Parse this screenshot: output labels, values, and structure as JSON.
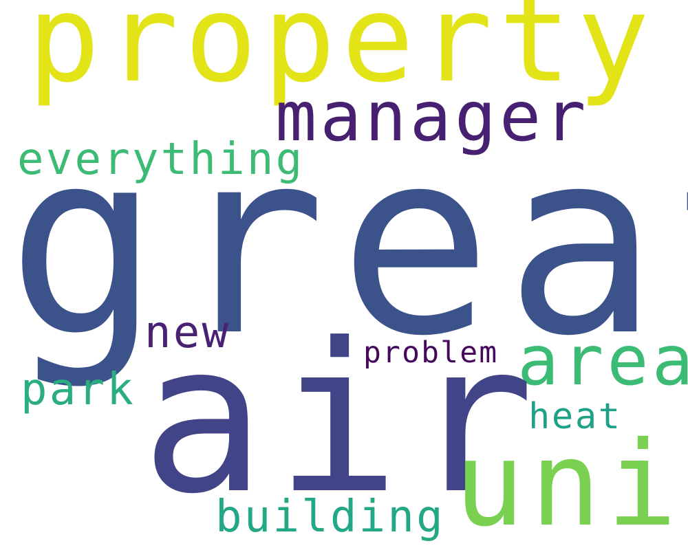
{
  "cloud": {
    "words": [
      {
        "id": "property",
        "text": "property",
        "color": "#e2e418"
      },
      {
        "id": "manager",
        "text": "manager",
        "color": "#482071"
      },
      {
        "id": "everything",
        "text": "everything",
        "color": "#3cbb75"
      },
      {
        "id": "great",
        "text": "great",
        "color": "#3b528b"
      },
      {
        "id": "new",
        "text": "new",
        "color": "#482173"
      },
      {
        "id": "problem",
        "text": "problem",
        "color": "#46085c"
      },
      {
        "id": "area",
        "text": "area",
        "color": "#3cbb75"
      },
      {
        "id": "park",
        "text": "park",
        "color": "#2aae80"
      },
      {
        "id": "air",
        "text": "air",
        "color": "#414487"
      },
      {
        "id": "heat",
        "text": "heat",
        "color": "#1fa187"
      },
      {
        "id": "unit",
        "text": "unit",
        "color": "#7ad151"
      },
      {
        "id": "building",
        "text": "building",
        "color": "#22a884"
      }
    ]
  }
}
